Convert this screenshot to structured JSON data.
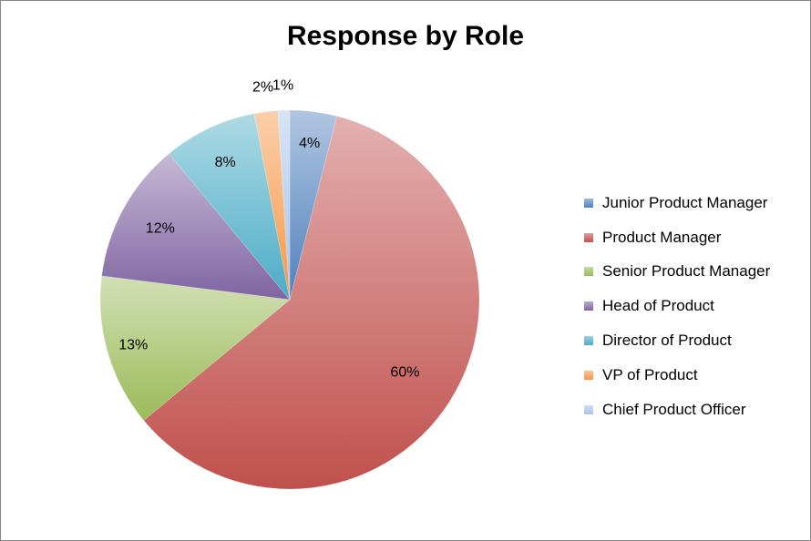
{
  "chart_data": {
    "type": "pie",
    "title": "Response by Role",
    "categories": [
      "Junior Product Manager",
      "Product Manager",
      "Senior Product Manager",
      "Head of Product",
      "Director of Product",
      "VP of Product",
      "Chief Product Officer"
    ],
    "values": [
      4,
      60,
      13,
      12,
      8,
      2,
      1
    ],
    "data_labels": [
      "4%",
      "60%",
      "13%",
      "12%",
      "8%",
      "2%",
      "1%"
    ],
    "colors": [
      "#4f81bd",
      "#c0504d",
      "#9bbb59",
      "#8064a2",
      "#4bacc6",
      "#f79646",
      "#a7c4ea"
    ],
    "legend_placement": "right",
    "start_angle_deg": 0,
    "direction": "clockwise"
  }
}
